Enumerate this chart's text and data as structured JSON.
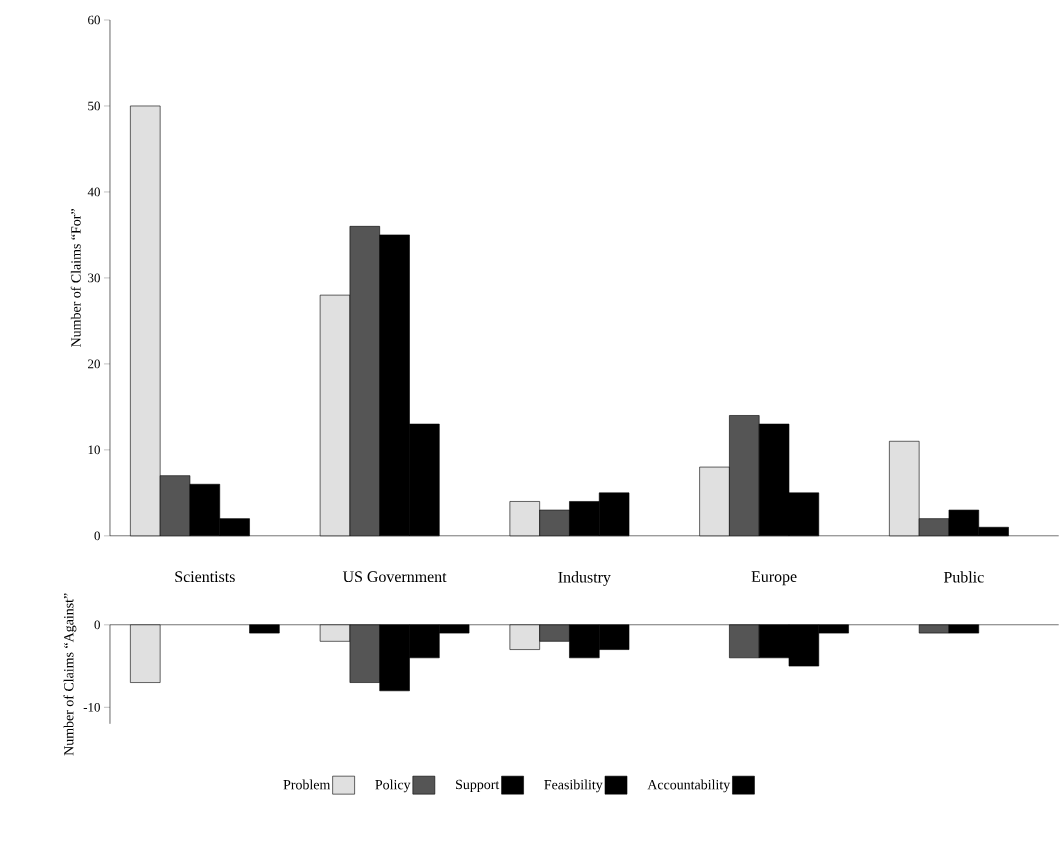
{
  "chart_data": [
    {
      "type": "bar",
      "ylabel": "Number of Claims “For”",
      "categories": [
        "Scientists",
        "US Government",
        "Industry",
        "Europe",
        "Public"
      ],
      "ylim": [
        0,
        60
      ],
      "yticks": [
        0,
        10,
        20,
        30,
        40,
        50,
        60
      ],
      "grid": false,
      "legend": false,
      "series": [
        {
          "color": "#e0e0e0",
          "values": [
            50,
            28,
            4,
            8,
            11
          ]
        },
        {
          "color": "#555555",
          "values": [
            7,
            36,
            3,
            14,
            2
          ]
        },
        {
          "color": "#000000",
          "values": [
            6,
            35,
            4,
            13,
            3
          ]
        },
        {
          "color": "#000000",
          "values": [
            2,
            13,
            5,
            5,
            1
          ]
        },
        {
          "color": "#000000",
          "values": [
            null,
            null,
            null,
            null,
            null
          ]
        }
      ]
    },
    {
      "type": "bar",
      "ylabel": "Number of Claims “Against”",
      "categories": [
        null,
        null,
        null,
        null,
        null
      ],
      "ylim": [
        -12,
        0
      ],
      "yticks": [
        -10,
        0
      ],
      "tick_labels": "y",
      "grid": false,
      "legend": "bottom",
      "series": [
        {
          "name": "Problem",
          "color": "#e0e0e0",
          "values": [
            -7,
            -2,
            -3,
            null,
            null
          ]
        },
        {
          "name": "Policy",
          "color": "#555555",
          "values": [
            null,
            -7,
            -2,
            -4,
            -1
          ]
        },
        {
          "name": "Support",
          "color": "#000000",
          "values": [
            null,
            -8,
            -4,
            -4,
            -1
          ]
        },
        {
          "name": "Feasibility",
          "color": "#000000",
          "values": [
            null,
            -4,
            -3,
            -5,
            null
          ]
        },
        {
          "name": "Accountability",
          "color": "#000000",
          "values": [
            -1,
            -1,
            null,
            -1,
            null
          ]
        }
      ]
    }
  ]
}
